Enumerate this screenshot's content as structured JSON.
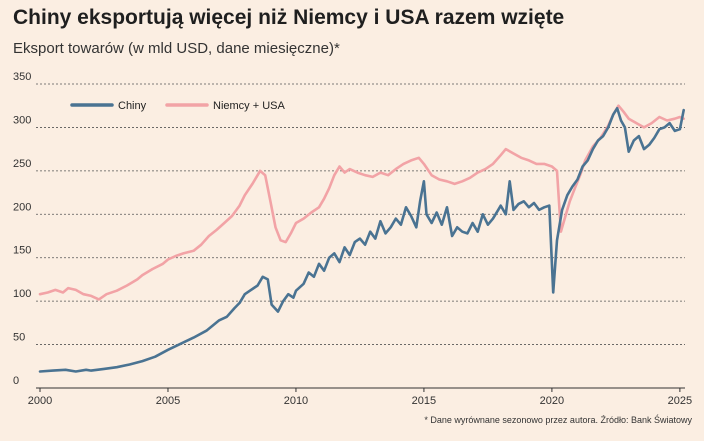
{
  "chart_data": {
    "type": "line",
    "title": "Chiny eksportują więcej niż Niemcy i USA razem wzięte",
    "subtitle": "Eksport towarów (w mld USD, dane miesięczne)*",
    "footnote": "* Dane wyrównane sezonowo przez autora. Źródło: Bank Światowy",
    "xlabel": "",
    "ylabel": "",
    "xlim": [
      2000,
      2025.2
    ],
    "ylim": [
      0,
      350
    ],
    "yticks": [
      0,
      50,
      100,
      150,
      200,
      250,
      300,
      350
    ],
    "xticks": [
      2000,
      2005,
      2010,
      2015,
      2020,
      2025
    ],
    "grid": true,
    "legend_position": "top-left",
    "series": [
      {
        "name": "Chiny",
        "color": "#4a7392",
        "points": [
          [
            2000.0,
            19
          ],
          [
            2000.5,
            20
          ],
          [
            2001.0,
            21
          ],
          [
            2001.4,
            19
          ],
          [
            2001.8,
            21
          ],
          [
            2002.0,
            20
          ],
          [
            2002.5,
            22
          ],
          [
            2003.0,
            24
          ],
          [
            2003.5,
            27
          ],
          [
            2004.0,
            31
          ],
          [
            2004.5,
            36
          ],
          [
            2005.0,
            44
          ],
          [
            2005.5,
            51
          ],
          [
            2006.0,
            58
          ],
          [
            2006.5,
            66
          ],
          [
            2007.0,
            78
          ],
          [
            2007.3,
            82
          ],
          [
            2007.6,
            92
          ],
          [
            2007.8,
            98
          ],
          [
            2008.0,
            108
          ],
          [
            2008.2,
            112
          ],
          [
            2008.5,
            118
          ],
          [
            2008.7,
            128
          ],
          [
            2008.9,
            125
          ],
          [
            2009.05,
            96
          ],
          [
            2009.3,
            88
          ],
          [
            2009.5,
            100
          ],
          [
            2009.7,
            108
          ],
          [
            2009.9,
            104
          ],
          [
            2010.0,
            112
          ],
          [
            2010.3,
            120
          ],
          [
            2010.5,
            133
          ],
          [
            2010.7,
            128
          ],
          [
            2010.9,
            143
          ],
          [
            2011.1,
            135
          ],
          [
            2011.3,
            150
          ],
          [
            2011.5,
            155
          ],
          [
            2011.7,
            145
          ],
          [
            2011.9,
            162
          ],
          [
            2012.1,
            153
          ],
          [
            2012.3,
            168
          ],
          [
            2012.5,
            172
          ],
          [
            2012.7,
            165
          ],
          [
            2012.9,
            180
          ],
          [
            2013.1,
            172
          ],
          [
            2013.3,
            192
          ],
          [
            2013.5,
            178
          ],
          [
            2013.7,
            185
          ],
          [
            2013.9,
            195
          ],
          [
            2014.1,
            188
          ],
          [
            2014.3,
            208
          ],
          [
            2014.5,
            198
          ],
          [
            2014.7,
            185
          ],
          [
            2014.85,
            215
          ],
          [
            2015.0,
            238
          ],
          [
            2015.1,
            200
          ],
          [
            2015.3,
            190
          ],
          [
            2015.5,
            202
          ],
          [
            2015.7,
            188
          ],
          [
            2015.9,
            208
          ],
          [
            2016.1,
            175
          ],
          [
            2016.3,
            185
          ],
          [
            2016.5,
            180
          ],
          [
            2016.7,
            178
          ],
          [
            2016.9,
            190
          ],
          [
            2017.1,
            180
          ],
          [
            2017.3,
            200
          ],
          [
            2017.5,
            188
          ],
          [
            2017.7,
            195
          ],
          [
            2017.9,
            205
          ],
          [
            2018.0,
            210
          ],
          [
            2018.2,
            200
          ],
          [
            2018.35,
            238
          ],
          [
            2018.5,
            205
          ],
          [
            2018.7,
            212
          ],
          [
            2018.9,
            215
          ],
          [
            2019.1,
            208
          ],
          [
            2019.3,
            213
          ],
          [
            2019.5,
            205
          ],
          [
            2019.7,
            208
          ],
          [
            2019.9,
            210
          ],
          [
            2020.05,
            110
          ],
          [
            2020.2,
            170
          ],
          [
            2020.4,
            205
          ],
          [
            2020.6,
            222
          ],
          [
            2020.8,
            232
          ],
          [
            2021.0,
            240
          ],
          [
            2021.2,
            255
          ],
          [
            2021.4,
            262
          ],
          [
            2021.6,
            275
          ],
          [
            2021.8,
            285
          ],
          [
            2022.0,
            290
          ],
          [
            2022.2,
            300
          ],
          [
            2022.4,
            315
          ],
          [
            2022.55,
            322
          ],
          [
            2022.7,
            308
          ],
          [
            2022.85,
            300
          ],
          [
            2023.0,
            272
          ],
          [
            2023.2,
            285
          ],
          [
            2023.4,
            290
          ],
          [
            2023.6,
            275
          ],
          [
            2023.8,
            280
          ],
          [
            2024.0,
            288
          ],
          [
            2024.2,
            298
          ],
          [
            2024.4,
            300
          ],
          [
            2024.6,
            305
          ],
          [
            2024.8,
            296
          ],
          [
            2025.0,
            298
          ],
          [
            2025.15,
            320
          ]
        ]
      },
      {
        "name": "Niemcy + USA",
        "color": "#f2a3a6",
        "points": [
          [
            2000.0,
            108
          ],
          [
            2000.3,
            110
          ],
          [
            2000.6,
            113
          ],
          [
            2000.9,
            110
          ],
          [
            2001.1,
            115
          ],
          [
            2001.4,
            113
          ],
          [
            2001.7,
            108
          ],
          [
            2002.0,
            106
          ],
          [
            2002.3,
            102
          ],
          [
            2002.6,
            108
          ],
          [
            2003.0,
            112
          ],
          [
            2003.4,
            118
          ],
          [
            2003.8,
            125
          ],
          [
            2004.0,
            130
          ],
          [
            2004.4,
            137
          ],
          [
            2004.8,
            143
          ],
          [
            2005.0,
            148
          ],
          [
            2005.3,
            152
          ],
          [
            2005.6,
            155
          ],
          [
            2006.0,
            158
          ],
          [
            2006.3,
            165
          ],
          [
            2006.6,
            175
          ],
          [
            2006.9,
            182
          ],
          [
            2007.2,
            190
          ],
          [
            2007.5,
            198
          ],
          [
            2007.8,
            210
          ],
          [
            2008.0,
            222
          ],
          [
            2008.3,
            235
          ],
          [
            2008.6,
            250
          ],
          [
            2008.8,
            245
          ],
          [
            2009.0,
            215
          ],
          [
            2009.2,
            185
          ],
          [
            2009.4,
            170
          ],
          [
            2009.6,
            168
          ],
          [
            2009.8,
            178
          ],
          [
            2010.0,
            190
          ],
          [
            2010.3,
            195
          ],
          [
            2010.6,
            202
          ],
          [
            2010.9,
            208
          ],
          [
            2011.1,
            218
          ],
          [
            2011.3,
            230
          ],
          [
            2011.5,
            245
          ],
          [
            2011.7,
            255
          ],
          [
            2011.9,
            248
          ],
          [
            2012.1,
            252
          ],
          [
            2012.4,
            248
          ],
          [
            2012.7,
            245
          ],
          [
            2013.0,
            243
          ],
          [
            2013.3,
            248
          ],
          [
            2013.6,
            245
          ],
          [
            2013.9,
            252
          ],
          [
            2014.2,
            258
          ],
          [
            2014.5,
            262
          ],
          [
            2014.8,
            265
          ],
          [
            2015.0,
            258
          ],
          [
            2015.3,
            245
          ],
          [
            2015.6,
            240
          ],
          [
            2015.9,
            238
          ],
          [
            2016.2,
            235
          ],
          [
            2016.5,
            238
          ],
          [
            2016.8,
            242
          ],
          [
            2017.1,
            248
          ],
          [
            2017.4,
            252
          ],
          [
            2017.7,
            258
          ],
          [
            2018.0,
            268
          ],
          [
            2018.2,
            275
          ],
          [
            2018.5,
            270
          ],
          [
            2018.8,
            265
          ],
          [
            2019.1,
            262
          ],
          [
            2019.4,
            258
          ],
          [
            2019.7,
            258
          ],
          [
            2020.0,
            255
          ],
          [
            2020.2,
            250
          ],
          [
            2020.35,
            180
          ],
          [
            2020.5,
            195
          ],
          [
            2020.7,
            215
          ],
          [
            2020.9,
            230
          ],
          [
            2021.1,
            245
          ],
          [
            2021.3,
            262
          ],
          [
            2021.6,
            278
          ],
          [
            2021.9,
            288
          ],
          [
            2022.2,
            302
          ],
          [
            2022.4,
            315
          ],
          [
            2022.6,
            325
          ],
          [
            2022.8,
            318
          ],
          [
            2023.0,
            310
          ],
          [
            2023.3,
            305
          ],
          [
            2023.6,
            300
          ],
          [
            2023.9,
            305
          ],
          [
            2024.2,
            312
          ],
          [
            2024.5,
            308
          ],
          [
            2024.8,
            310
          ],
          [
            2025.0,
            312
          ],
          [
            2025.15,
            310
          ]
        ]
      }
    ]
  }
}
